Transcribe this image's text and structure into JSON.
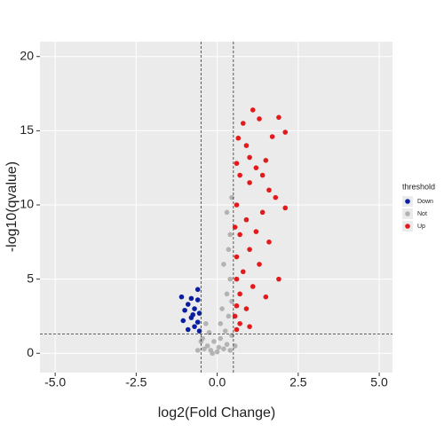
{
  "chart_data": {
    "type": "scatter",
    "x_label": "log2(Fold Change)",
    "y_label": "-log10(qvalue)",
    "xlim": [
      -5.47,
      5.41
    ],
    "ylim": [
      -1.3,
      21
    ],
    "xticks": [
      {
        "value": -5,
        "label": "-5.0"
      },
      -2.5,
      {
        "value": 0,
        "label": "0.0"
      },
      2.5,
      {
        "value": 5,
        "label": "5.0"
      }
    ],
    "yticks": [
      0,
      5,
      10,
      15,
      20
    ],
    "grid": true,
    "vlines": [
      -0.5,
      0.5
    ],
    "hline": 1.3,
    "legend_title": "threshold",
    "legend_position": "right",
    "series": [
      {
        "name": "Down",
        "color": "#0a1fa0",
        "x": [
          -0.6,
          -0.8,
          -1.1,
          -0.6,
          -0.9,
          -0.7,
          -1.0,
          -0.55,
          -0.8,
          -1.05,
          -0.6,
          -0.7,
          -0.9,
          -0.55,
          -0.75
        ],
        "y": [
          4.3,
          3.7,
          3.8,
          3.6,
          3.3,
          3.0,
          2.9,
          2.7,
          2.4,
          2.2,
          2.1,
          1.8,
          1.6,
          1.5,
          2.6
        ]
      },
      {
        "name": "Not",
        "color": "#b3b3b3",
        "x": [
          0,
          0.2,
          -0.2,
          0.3,
          -0.3,
          0.1,
          -0.1,
          0.4,
          -0.4,
          0.25,
          -0.25,
          0.35,
          0.15,
          0.3,
          0.4,
          0.2,
          0.35,
          0.4,
          0.3,
          0.45,
          -0.35,
          -0.45,
          0.45,
          -0.15,
          0.05,
          0.45,
          -0.5,
          0.55,
          -0.6,
          0.1
        ],
        "y": [
          0.1,
          0.3,
          0.2,
          0.6,
          0.5,
          1,
          0.8,
          0.2,
          0.3,
          1.5,
          1.4,
          2.5,
          3,
          4,
          5,
          6,
          7,
          8,
          9.5,
          10.5,
          2,
          1,
          3.5,
          0,
          0.4,
          1.2,
          0.8,
          0.5,
          0.2,
          2
        ]
      },
      {
        "name": "Up",
        "color": "#e31a1c",
        "x": [
          1.1,
          1.3,
          1.9,
          0.8,
          1.7,
          2.1,
          0.9,
          1.5,
          1.2,
          0.7,
          1.0,
          1.6,
          2.1,
          1.8,
          0.6,
          1.4,
          0.9,
          1.2,
          0.7,
          1.6,
          1.0,
          0.6,
          1.3,
          0.8,
          1.9,
          0.6,
          1.1,
          0.7,
          1.5,
          0.6,
          0.9,
          0.55,
          0.7,
          1.0,
          0.6,
          0.55,
          0.6,
          0.65,
          1.4,
          1.0
        ],
        "y": [
          16.4,
          15.8,
          15.9,
          15.5,
          14.6,
          14.9,
          14,
          13,
          12.5,
          12,
          11.5,
          11,
          9.8,
          10.5,
          10,
          9.5,
          9,
          8.2,
          8,
          7.5,
          7,
          6.5,
          6,
          5.5,
          5,
          5,
          4.5,
          4,
          3.8,
          3.2,
          3,
          2.5,
          2,
          1.8,
          1.6,
          8.5,
          12.8,
          14.5,
          12,
          13.2
        ]
      }
    ]
  }
}
